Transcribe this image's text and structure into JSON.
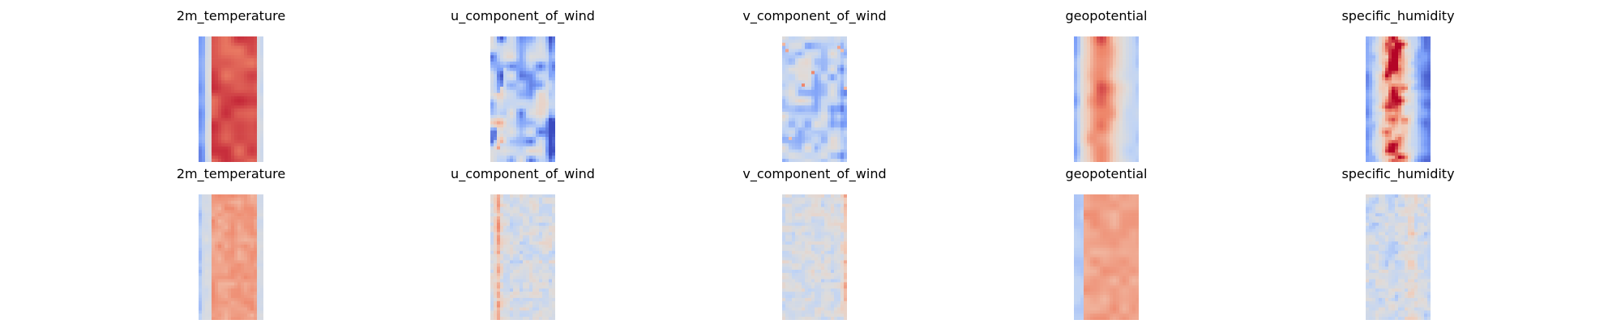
{
  "chart_data": {
    "type": "heatmap",
    "colormap": [
      "#3b4cc0",
      "#7b9ff9",
      "#c0d4f5",
      "#dddcdc",
      "#f2cbb7",
      "#ee8468",
      "#b40426"
    ],
    "grid_on": false,
    "axes_visible": false,
    "rows": [
      {
        "panels": [
          {
            "title": "2m_temperature",
            "variable": "2m_temperature",
            "pattern": "temp_strong"
          },
          {
            "title": "u_component_of_wind",
            "variable": "u_component_of_wind",
            "pattern": "uwind_strong"
          },
          {
            "title": "v_component_of_wind",
            "variable": "v_component_of_wind",
            "pattern": "vwind_strong"
          },
          {
            "title": "geopotential",
            "variable": "geopotential",
            "pattern": "geo_strong"
          },
          {
            "title": "specific_humidity",
            "variable": "specific_humidity",
            "pattern": "hum_strong"
          }
        ]
      },
      {
        "panels": [
          {
            "title": "2m_temperature",
            "variable": "2m_temperature",
            "pattern": "temp_soft"
          },
          {
            "title": "u_component_of_wind",
            "variable": "u_component_of_wind",
            "pattern": "uwind_soft"
          },
          {
            "title": "v_component_of_wind",
            "variable": "v_component_of_wind",
            "pattern": "vwind_soft"
          },
          {
            "title": "geopotential",
            "variable": "geopotential",
            "pattern": "geo_soft"
          },
          {
            "title": "specific_humidity",
            "variable": "specific_humidity",
            "pattern": "hum_soft"
          }
        ]
      }
    ]
  }
}
